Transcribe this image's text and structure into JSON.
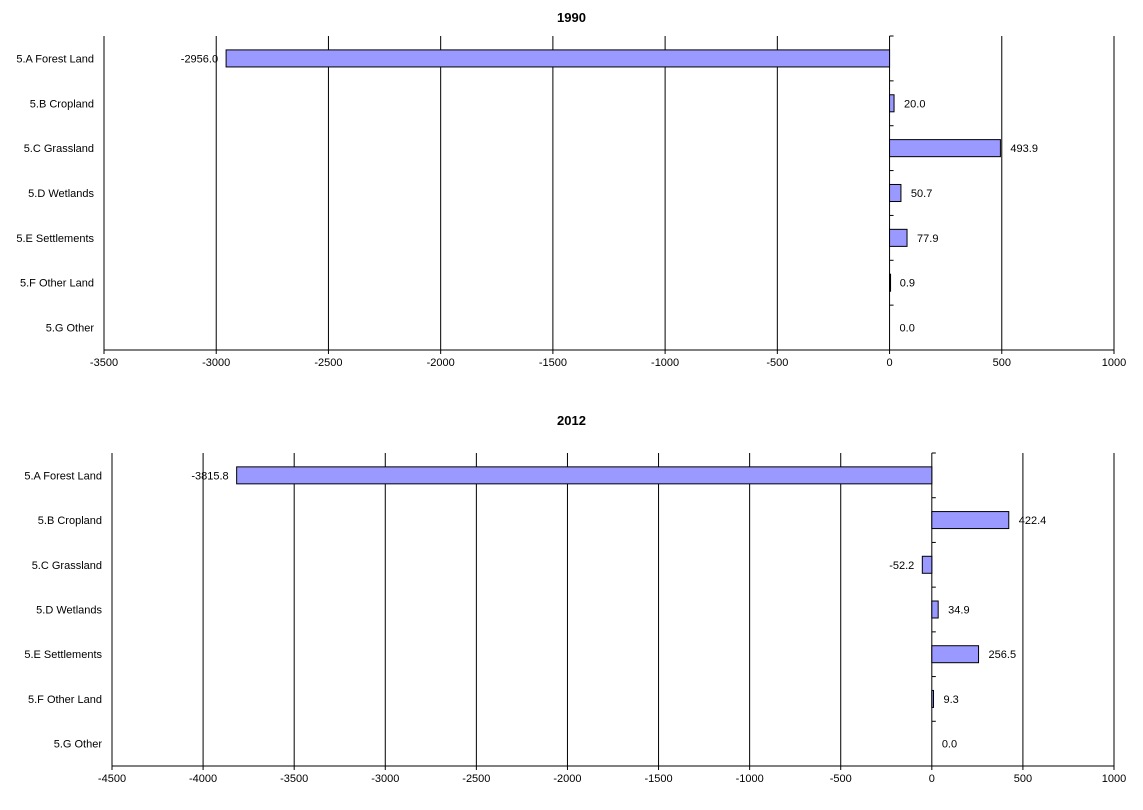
{
  "chart_data": [
    {
      "type": "bar",
      "orientation": "horizontal",
      "title": "1990",
      "categories": [
        "5.A Forest Land",
        "5.B Cropland",
        "5.C Grassland",
        "5.D Wetlands",
        "5.E Settlements",
        "5.F Other Land",
        "5.G Other"
      ],
      "values": [
        -2956.0,
        20.0,
        493.9,
        50.7,
        77.9,
        0.9,
        0.0
      ],
      "value_labels": [
        "-2956.0",
        "20.0",
        "493.9",
        "50.7",
        "77.9",
        "0.9",
        "0.0"
      ],
      "xlim": [
        -3500,
        1000
      ],
      "ticks": [
        -3500,
        -3000,
        -2500,
        -2000,
        -1500,
        -1000,
        -500,
        0,
        500,
        1000
      ],
      "tick_labels": [
        "-3500",
        "-3000",
        "-2500",
        "-2000",
        "-1500",
        "-1000",
        "-500",
        "0",
        "500",
        "1000"
      ],
      "grid": true,
      "bar_color": "#9999ff",
      "legend": "none"
    },
    {
      "type": "bar",
      "orientation": "horizontal",
      "title": "2012",
      "categories": [
        "5.A Forest Land",
        "5.B Cropland",
        "5.C Grassland",
        "5.D Wetlands",
        "5.E Settlements",
        "5.F Other Land",
        "5.G Other"
      ],
      "values": [
        -3815.8,
        422.4,
        -52.2,
        34.9,
        256.5,
        9.3,
        0.0
      ],
      "value_labels": [
        "-3815.8",
        "422.4",
        "-52.2",
        "34.9",
        "256.5",
        "9.3",
        "0.0"
      ],
      "xlim": [
        -4500,
        1000
      ],
      "ticks": [
        -4500,
        -4000,
        -3500,
        -3000,
        -2500,
        -2000,
        -1500,
        -1000,
        -500,
        0,
        500,
        1000
      ],
      "tick_labels": [
        "-4500",
        "-4000",
        "-3500",
        "-3000",
        "-2500",
        "-2000",
        "-1500",
        "-1000",
        "-500",
        "0",
        "500",
        "1000"
      ],
      "grid": true,
      "bar_color": "#9999ff",
      "legend": "none"
    }
  ]
}
